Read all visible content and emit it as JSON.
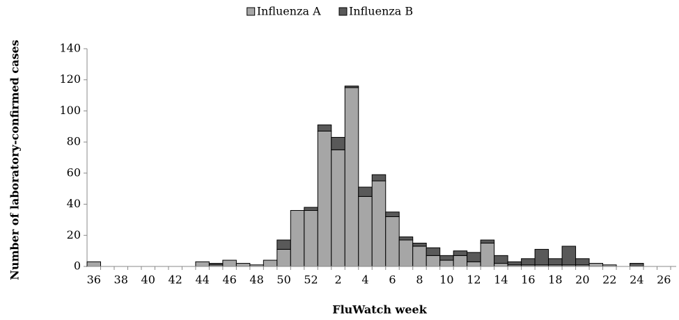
{
  "chart_data": {
    "type": "stacked_bar",
    "x_label": "FluWatch week",
    "y_label": "Number of laboratory-confirmed cases",
    "categories": [
      "36",
      null,
      "38",
      null,
      "40",
      null,
      "42",
      null,
      "44",
      null,
      "46",
      null,
      "48",
      null,
      "50",
      null,
      "52",
      null,
      "2",
      null,
      "4",
      null,
      "6",
      null,
      "8",
      null,
      "10",
      null,
      "12",
      null,
      "14",
      null,
      "16",
      null,
      "18",
      null,
      "20",
      null,
      "22",
      null,
      "24",
      null,
      "26"
    ],
    "series": [
      {
        "name": "Influenza A",
        "color": "#a6a6a6",
        "values": [
          3,
          0,
          0,
          0,
          0,
          0,
          0,
          0,
          3,
          1,
          4,
          2,
          1,
          4,
          11,
          36,
          36,
          87,
          75,
          115,
          45,
          55,
          32,
          17,
          13,
          7,
          4,
          7,
          3,
          15,
          2,
          1,
          1,
          1,
          1,
          1,
          1,
          2,
          1,
          0,
          0,
          0,
          0
        ]
      },
      {
        "name": "Influenza B",
        "color": "#595959",
        "values": [
          0,
          0,
          0,
          0,
          0,
          0,
          0,
          0,
          0,
          1,
          0,
          0,
          0,
          0,
          6,
          0,
          2,
          4,
          8,
          1,
          6,
          4,
          3,
          2,
          2,
          5,
          3,
          3,
          6,
          2,
          5,
          2,
          4,
          10,
          4,
          12,
          4,
          0,
          0,
          0,
          2,
          0,
          0
        ]
      }
    ],
    "ylim": [
      0,
      140
    ],
    "yticks": [
      0,
      20,
      40,
      60,
      80,
      100,
      120,
      140
    ],
    "legend": "top"
  }
}
